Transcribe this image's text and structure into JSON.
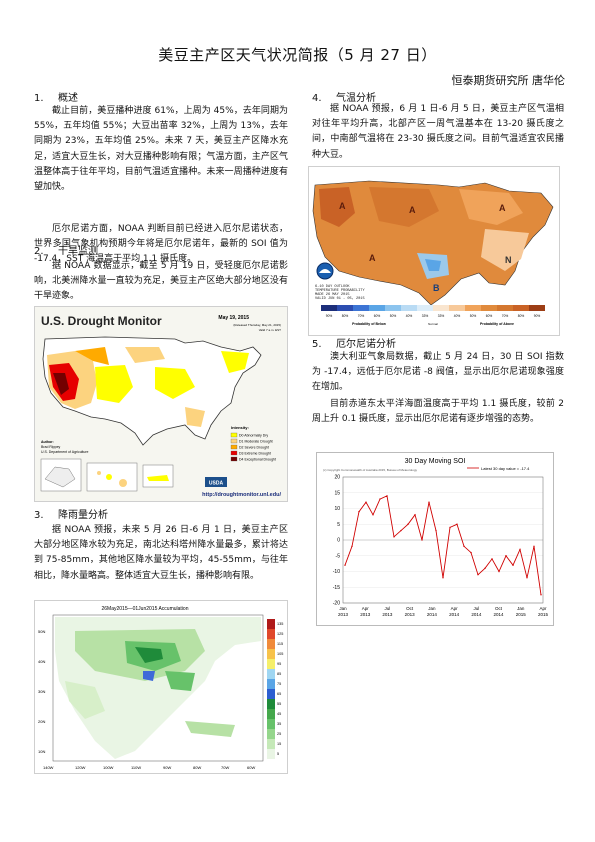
{
  "header": {
    "title": "美豆主产区天气状况简报（5 月 27 日）",
    "author": "恒泰期货研究所  唐华伦"
  },
  "sections": {
    "s1": {
      "num": "1.",
      "title": "概述",
      "para1": "截止目前，美豆播种进度 61%，上周为 45%，去年同期为 55%，五年均值 55%；大豆出苗率 32%，上周为 13%，去年同期为 23%，五年均值 25%。未来 7 天，美豆主产区降水充足，适宜大豆生长，对大豆播种影响有限；气温方面，主产区气温整体高于往年平均，目前气温适宜播种。未来一周播种进度有望加快。",
      "para2": "厄尔尼诺方面，NOAA 判断目前已经进入厄尔尼诺状态，世界多国气象机构预期今年将是厄尔尼诺年，最新的 SOI 值为 -17.4，SST 海温高于平均 1.1 摄氏度。"
    },
    "s2": {
      "num": "2.",
      "title": "干旱监测",
      "para": "据 NOAA 数据显示，截至 5 月 19 日，受轻度厄尔尼诺影响，北美洲降水量一直较为充足，美豆主产区绝大部分地区没有干旱迹象。"
    },
    "s3": {
      "num": "3.",
      "title": "降雨量分析",
      "para": "据 NOAA 预报，未来 5 月 26 日-6 月 1 日，美豆主产区大部分地区降水较为充足，南北达科塔州降水量最多，累计将达到 75-85mm，其他地区降水量较为平均，45-55mm，与往年相比，降水量略高。整体适宜大豆生长，播种影响有限。"
    },
    "s4": {
      "num": "4.",
      "title": "气温分析",
      "para": "据 NOAA 预报，6 月 1 日-6 月 5 日，美豆主产区气温相对往年平均升高，北部产区一周气温基本在 13-20 摄氏度之间，中南部气温将在 23-30 摄氏度之间。目前气温适宜农民播种大豆。"
    },
    "s5": {
      "num": "5.",
      "title": "厄尔尼诺分析",
      "para1": "澳大利亚气象局数据，截止 5 月 24 日，30 日 SOI 指数为 -17.4，远低于厄尔尼诺 -8 阀值，显示出厄尔尼诺现象强度在增加。",
      "para2": "目前赤道东太平洋海面温度高于平均 1.1 摄氏度，较前 2 周上升 0.1 摄氏度，显示出厄尔尼诺有逐步增强的态势。"
    }
  },
  "drought_map": {
    "title": "U.S. Drought Monitor",
    "date": "May 19, 2015",
    "valid": "(Released Thursday, May 21, 2015)",
    "valid2": "Valid 7 a.m. EST",
    "url": "http://droughtmonitor.unl.edu/",
    "author_label": "Author:",
    "author_name": "Brad Rippey",
    "author_org": "U.S. Department of Agriculture",
    "logo": "USDA",
    "legend_title": "Intensity:",
    "legend": [
      "D0 Abnormally Dry",
      "D1 Moderate Drought",
      "D2 Severe Drought",
      "D3 Extreme Drought",
      "D4 Exceptional Drought"
    ],
    "colors": {
      "D0": "#ffff00",
      "D1": "#fcd37f",
      "D2": "#ffaa00",
      "D3": "#e60000",
      "D4": "#730000"
    }
  },
  "precip_map": {
    "title": "26May2015—01Jun2015 Accumulation",
    "scale": [
      "135",
      "125",
      "115",
      "105",
      "95",
      "85",
      "75",
      "65",
      "55",
      "45",
      "35",
      "25",
      "15",
      "5"
    ],
    "lat_labels": [
      "50N",
      "40N",
      "30N",
      "20N",
      "10N"
    ],
    "lon_labels": [
      "140W",
      "120W",
      "100W",
      "110W",
      "90W",
      "80W",
      "70W",
      "60W"
    ]
  },
  "temp_map": {
    "caption_lines": [
      "6-10 DAY OUTLOOK",
      "TEMPERATURE PROBABILITY",
      "MADE 26 MAY 2015",
      "VALID JUN 01 - 05, 2015"
    ],
    "scale": [
      "90%",
      "80%",
      "70%",
      "60%",
      "50%",
      "40%",
      "33%",
      "33%",
      "40%",
      "50%",
      "60%",
      "70%",
      "80%",
      "90%"
    ],
    "below_label": "Probability of Below",
    "normal_label": "Normal",
    "above_label": "Probability of Above"
  },
  "chart_data": {
    "type": "line",
    "title": "30 Day Moving SOI",
    "copyright": "(c) Copyright Commonwealth of Australia 2015, Bureau of Meteorology",
    "legend": "Latest 30 day value = -17.4",
    "ylim": [
      -20,
      20
    ],
    "yticks": [
      20,
      15,
      10,
      5,
      0,
      -5,
      -10,
      -15,
      -20
    ],
    "xticks": [
      {
        "m": "Jan",
        "y": "2013"
      },
      {
        "m": "Apr",
        "y": "2013"
      },
      {
        "m": "Jul",
        "y": "2013"
      },
      {
        "m": "Oct",
        "y": "2013"
      },
      {
        "m": "Jan",
        "y": "2014"
      },
      {
        "m": "Apr",
        "y": "2014"
      },
      {
        "m": "Jul",
        "y": "2014"
      },
      {
        "m": "Oct",
        "y": "2014"
      },
      {
        "m": "Jan",
        "y": "2015"
      },
      {
        "m": "Apr",
        "y": "2015"
      }
    ],
    "series": [
      {
        "name": "30 Day Moving SOI",
        "x": [
          "2013-01",
          "2013-02",
          "2013-03",
          "2013-04",
          "2013-05",
          "2013-06",
          "2013-07",
          "2013-08",
          "2013-09",
          "2013-10",
          "2013-11",
          "2013-12",
          "2014-01",
          "2014-02",
          "2014-03",
          "2014-04",
          "2014-05",
          "2014-06",
          "2014-07",
          "2014-08",
          "2014-09",
          "2014-10",
          "2014-11",
          "2014-12",
          "2015-01",
          "2015-02",
          "2015-03",
          "2015-04",
          "2015-05"
        ],
        "values": [
          -8,
          -2,
          9,
          12,
          8,
          13,
          14,
          1,
          3,
          5,
          8,
          0,
          12,
          3,
          -12,
          4,
          5,
          -2,
          -4,
          -11,
          -9,
          -6,
          -10,
          -5,
          -8,
          -3,
          -12,
          -2,
          -17.4
        ]
      }
    ],
    "color": "#d00000"
  }
}
